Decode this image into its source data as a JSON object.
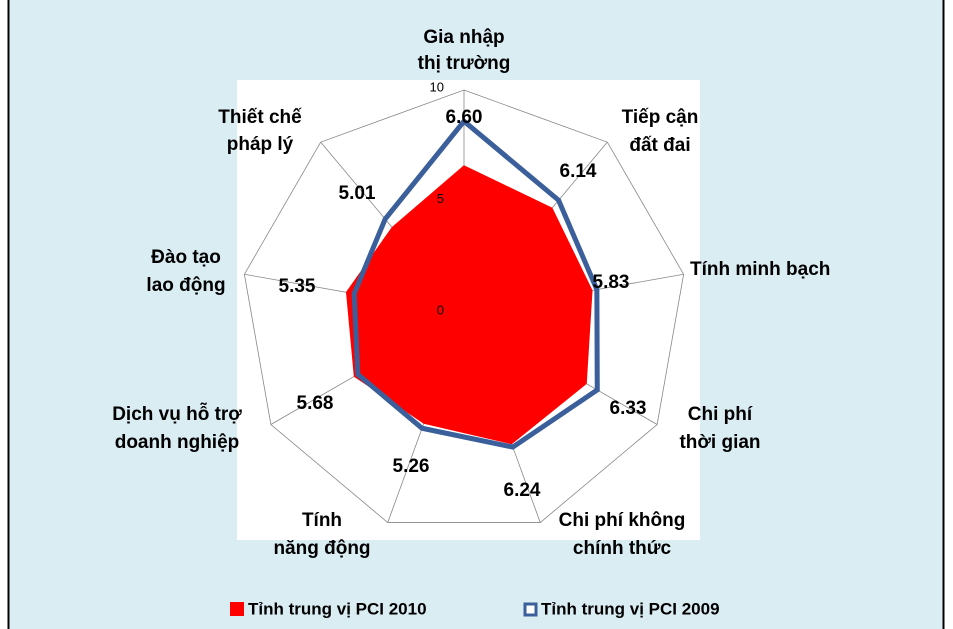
{
  "chart_data": {
    "type": "radar",
    "categories": [
      [
        "Gia nhập",
        "thị trường"
      ],
      [
        "Tiếp cận",
        "đất đai"
      ],
      [
        "Tính minh bạch"
      ],
      [
        "Chi phí",
        "thời gian"
      ],
      [
        "Chi phí không",
        "chính thức"
      ],
      [
        "Tính",
        "năng động"
      ],
      [
        "Dịch vụ hỗ trợ",
        "doanh nghiệp"
      ],
      [
        "Đào tạo",
        "lao động"
      ],
      [
        "Thiết chế",
        "pháp lý"
      ]
    ],
    "series": [
      {
        "name": "Tỉnh trung vị PCI 2010",
        "color": "#ff0000",
        "style": "fill",
        "values": [
          6.6,
          6.14,
          5.83,
          6.33,
          6.24,
          5.26,
          5.68,
          5.35,
          5.01
        ],
        "value_labels": [
          "6.60",
          "6.14",
          "5.83",
          "6.33",
          "6.24",
          "5.26",
          "5.68",
          "5.35",
          "5.01"
        ]
      },
      {
        "name": "Tỉnh trung vị PCI 2009",
        "color": "#3a5f9a",
        "style": "line",
        "values": [
          8.6,
          6.6,
          6.05,
          6.9,
          6.4,
          5.5,
          5.5,
          5.0,
          5.5
        ]
      }
    ],
    "ylim": [
      0,
      10
    ],
    "yticks": [
      0,
      5,
      10
    ]
  }
}
